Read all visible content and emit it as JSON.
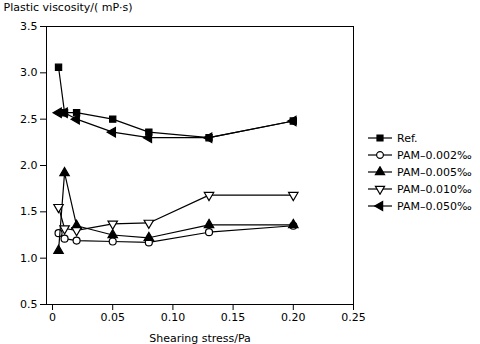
{
  "chart_data": {
    "type": "line",
    "xlabel": "Shearing stress/Pa",
    "ylabel": "Plastic viscosity/( mP·s)",
    "x": [
      0.005,
      0.01,
      0.02,
      0.05,
      0.08,
      0.13,
      0.2
    ],
    "xlim": [
      -0.005,
      0.25
    ],
    "xticks": [
      0,
      0.05,
      {
        "value": 0.1,
        "label": "0.10"
      },
      0.15,
      {
        "value": 0.2,
        "label": "0.20"
      },
      0.25
    ],
    "ylim": [
      0.5,
      3.5
    ],
    "yticks": [
      0.5,
      {
        "value": 1,
        "label": "1.0"
      },
      1.5,
      {
        "value": 2,
        "label": "2.0"
      },
      2.5,
      {
        "value": 3,
        "label": "3.0"
      },
      3.5
    ],
    "grid": false,
    "legend": "right",
    "series": [
      {
        "name": "Ref.",
        "color": "#000000",
        "marker": "square",
        "line_style": "solid",
        "values": [
          3.06,
          2.57,
          2.57,
          2.5,
          2.36,
          2.3,
          2.48
        ]
      },
      {
        "name": "PAM–0.002‰",
        "color": "#000000",
        "marker": "circle_open",
        "line_style": "solid",
        "values": [
          1.27,
          1.21,
          1.19,
          1.18,
          1.17,
          1.28,
          1.35
        ]
      },
      {
        "name": "PAM–0.005‰",
        "color": "#000000",
        "marker": "triangle_up",
        "line_style": "solid",
        "values": [
          1.08,
          1.92,
          1.35,
          1.25,
          1.22,
          1.36,
          1.36
        ]
      },
      {
        "name": "PAM–0.010‰",
        "color": "#000000",
        "marker": "triangle_down_open",
        "line_style": "solid",
        "values": [
          1.55,
          1.32,
          1.3,
          1.37,
          1.38,
          1.68,
          1.68
        ]
      },
      {
        "name": "PAM–0.050‰",
        "color": "#000000",
        "marker": "triangle_left",
        "line_style": "solid",
        "values": [
          2.57,
          2.57,
          2.5,
          2.36,
          2.3,
          2.3,
          2.48
        ]
      }
    ]
  }
}
